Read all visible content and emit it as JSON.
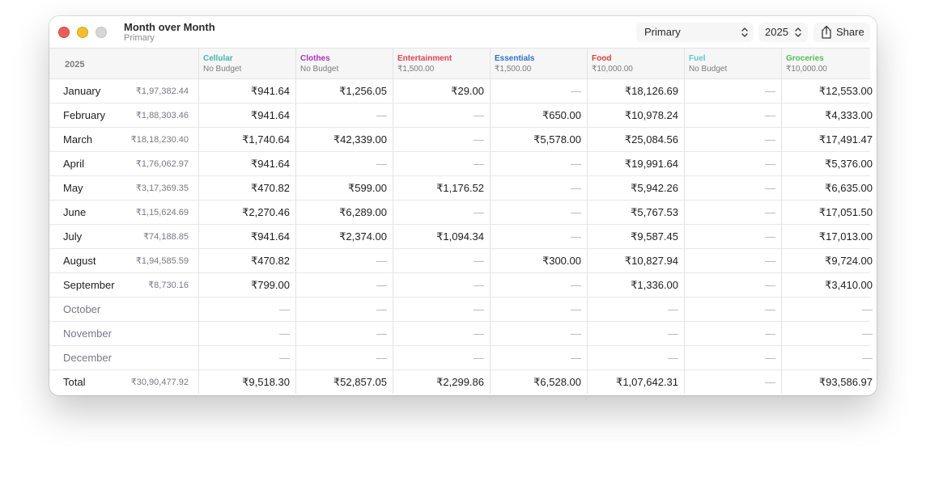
{
  "window": {
    "title": "Month over Month",
    "subtitle": "Primary",
    "account_select": "Primary",
    "year_select": "2025",
    "share_label": "Share"
  },
  "table": {
    "year_label": "2025",
    "columns": [
      {
        "name": "Cellular",
        "budget": "No Budget",
        "color": "#3fb8b0"
      },
      {
        "name": "Clothes",
        "budget": "No Budget",
        "color": "#b02ec4"
      },
      {
        "name": "Entertainment",
        "budget": "₹1,500.00",
        "color": "#e8424f"
      },
      {
        "name": "Essentials",
        "budget": "₹1,500.00",
        "color": "#2f6fd6"
      },
      {
        "name": "Food",
        "budget": "₹10,000.00",
        "color": "#e0402e"
      },
      {
        "name": "Fuel",
        "budget": "No Budget",
        "color": "#5ec6cf"
      },
      {
        "name": "Groceries",
        "budget": "₹10,000.00",
        "color": "#4fbf55"
      }
    ],
    "rows": [
      {
        "month": "January",
        "total": "₹1,97,382.44",
        "future": false,
        "values": [
          "₹941.64",
          "₹1,256.05",
          "₹29.00",
          "—",
          "₹18,126.69",
          "—",
          "₹12,553.00"
        ]
      },
      {
        "month": "February",
        "total": "₹1,88,303.46",
        "future": false,
        "values": [
          "₹941.64",
          "—",
          "—",
          "₹650.00",
          "₹10,978.24",
          "—",
          "₹4,333.00"
        ]
      },
      {
        "month": "March",
        "total": "₹18,18,230.40",
        "future": false,
        "values": [
          "₹1,740.64",
          "₹42,339.00",
          "—",
          "₹5,578.00",
          "₹25,084.56",
          "—",
          "₹17,491.47"
        ]
      },
      {
        "month": "April",
        "total": "₹1,76,062.97",
        "future": false,
        "values": [
          "₹941.64",
          "—",
          "—",
          "—",
          "₹19,991.64",
          "—",
          "₹5,376.00"
        ]
      },
      {
        "month": "May",
        "total": "₹3,17,369.35",
        "future": false,
        "values": [
          "₹470.82",
          "₹599.00",
          "₹1,176.52",
          "—",
          "₹5,942.26",
          "—",
          "₹6,635.00"
        ]
      },
      {
        "month": "June",
        "total": "₹1,15,624.69",
        "future": false,
        "values": [
          "₹2,270.46",
          "₹6,289.00",
          "—",
          "—",
          "₹5,767.53",
          "—",
          "₹17,051.50"
        ]
      },
      {
        "month": "July",
        "total": "₹74,188.85",
        "future": false,
        "values": [
          "₹941.64",
          "₹2,374.00",
          "₹1,094.34",
          "—",
          "₹9,587.45",
          "—",
          "₹17,013.00"
        ]
      },
      {
        "month": "August",
        "total": "₹1,94,585.59",
        "future": false,
        "values": [
          "₹470.82",
          "—",
          "—",
          "₹300.00",
          "₹10,827.94",
          "—",
          "₹9,724.00"
        ]
      },
      {
        "month": "September",
        "total": "₹8,730.16",
        "future": false,
        "values": [
          "₹799.00",
          "—",
          "—",
          "—",
          "₹1,336.00",
          "—",
          "₹3,410.00"
        ]
      },
      {
        "month": "October",
        "total": "",
        "future": true,
        "values": [
          "—",
          "—",
          "—",
          "—",
          "—",
          "—",
          "—"
        ]
      },
      {
        "month": "November",
        "total": "",
        "future": true,
        "values": [
          "—",
          "—",
          "—",
          "—",
          "—",
          "—",
          "—"
        ]
      },
      {
        "month": "December",
        "total": "",
        "future": true,
        "values": [
          "—",
          "—",
          "—",
          "—",
          "—",
          "—",
          "—"
        ]
      }
    ],
    "total_row": {
      "month": "Total",
      "total": "₹30,90,477.92",
      "values": [
        "₹9,518.30",
        "₹52,857.05",
        "₹2,299.86",
        "₹6,528.00",
        "₹1,07,642.31",
        "—",
        "₹93,586.97"
      ]
    }
  },
  "icons": {
    "share": "share-icon",
    "chevron": "chevron-up-down-icon"
  }
}
